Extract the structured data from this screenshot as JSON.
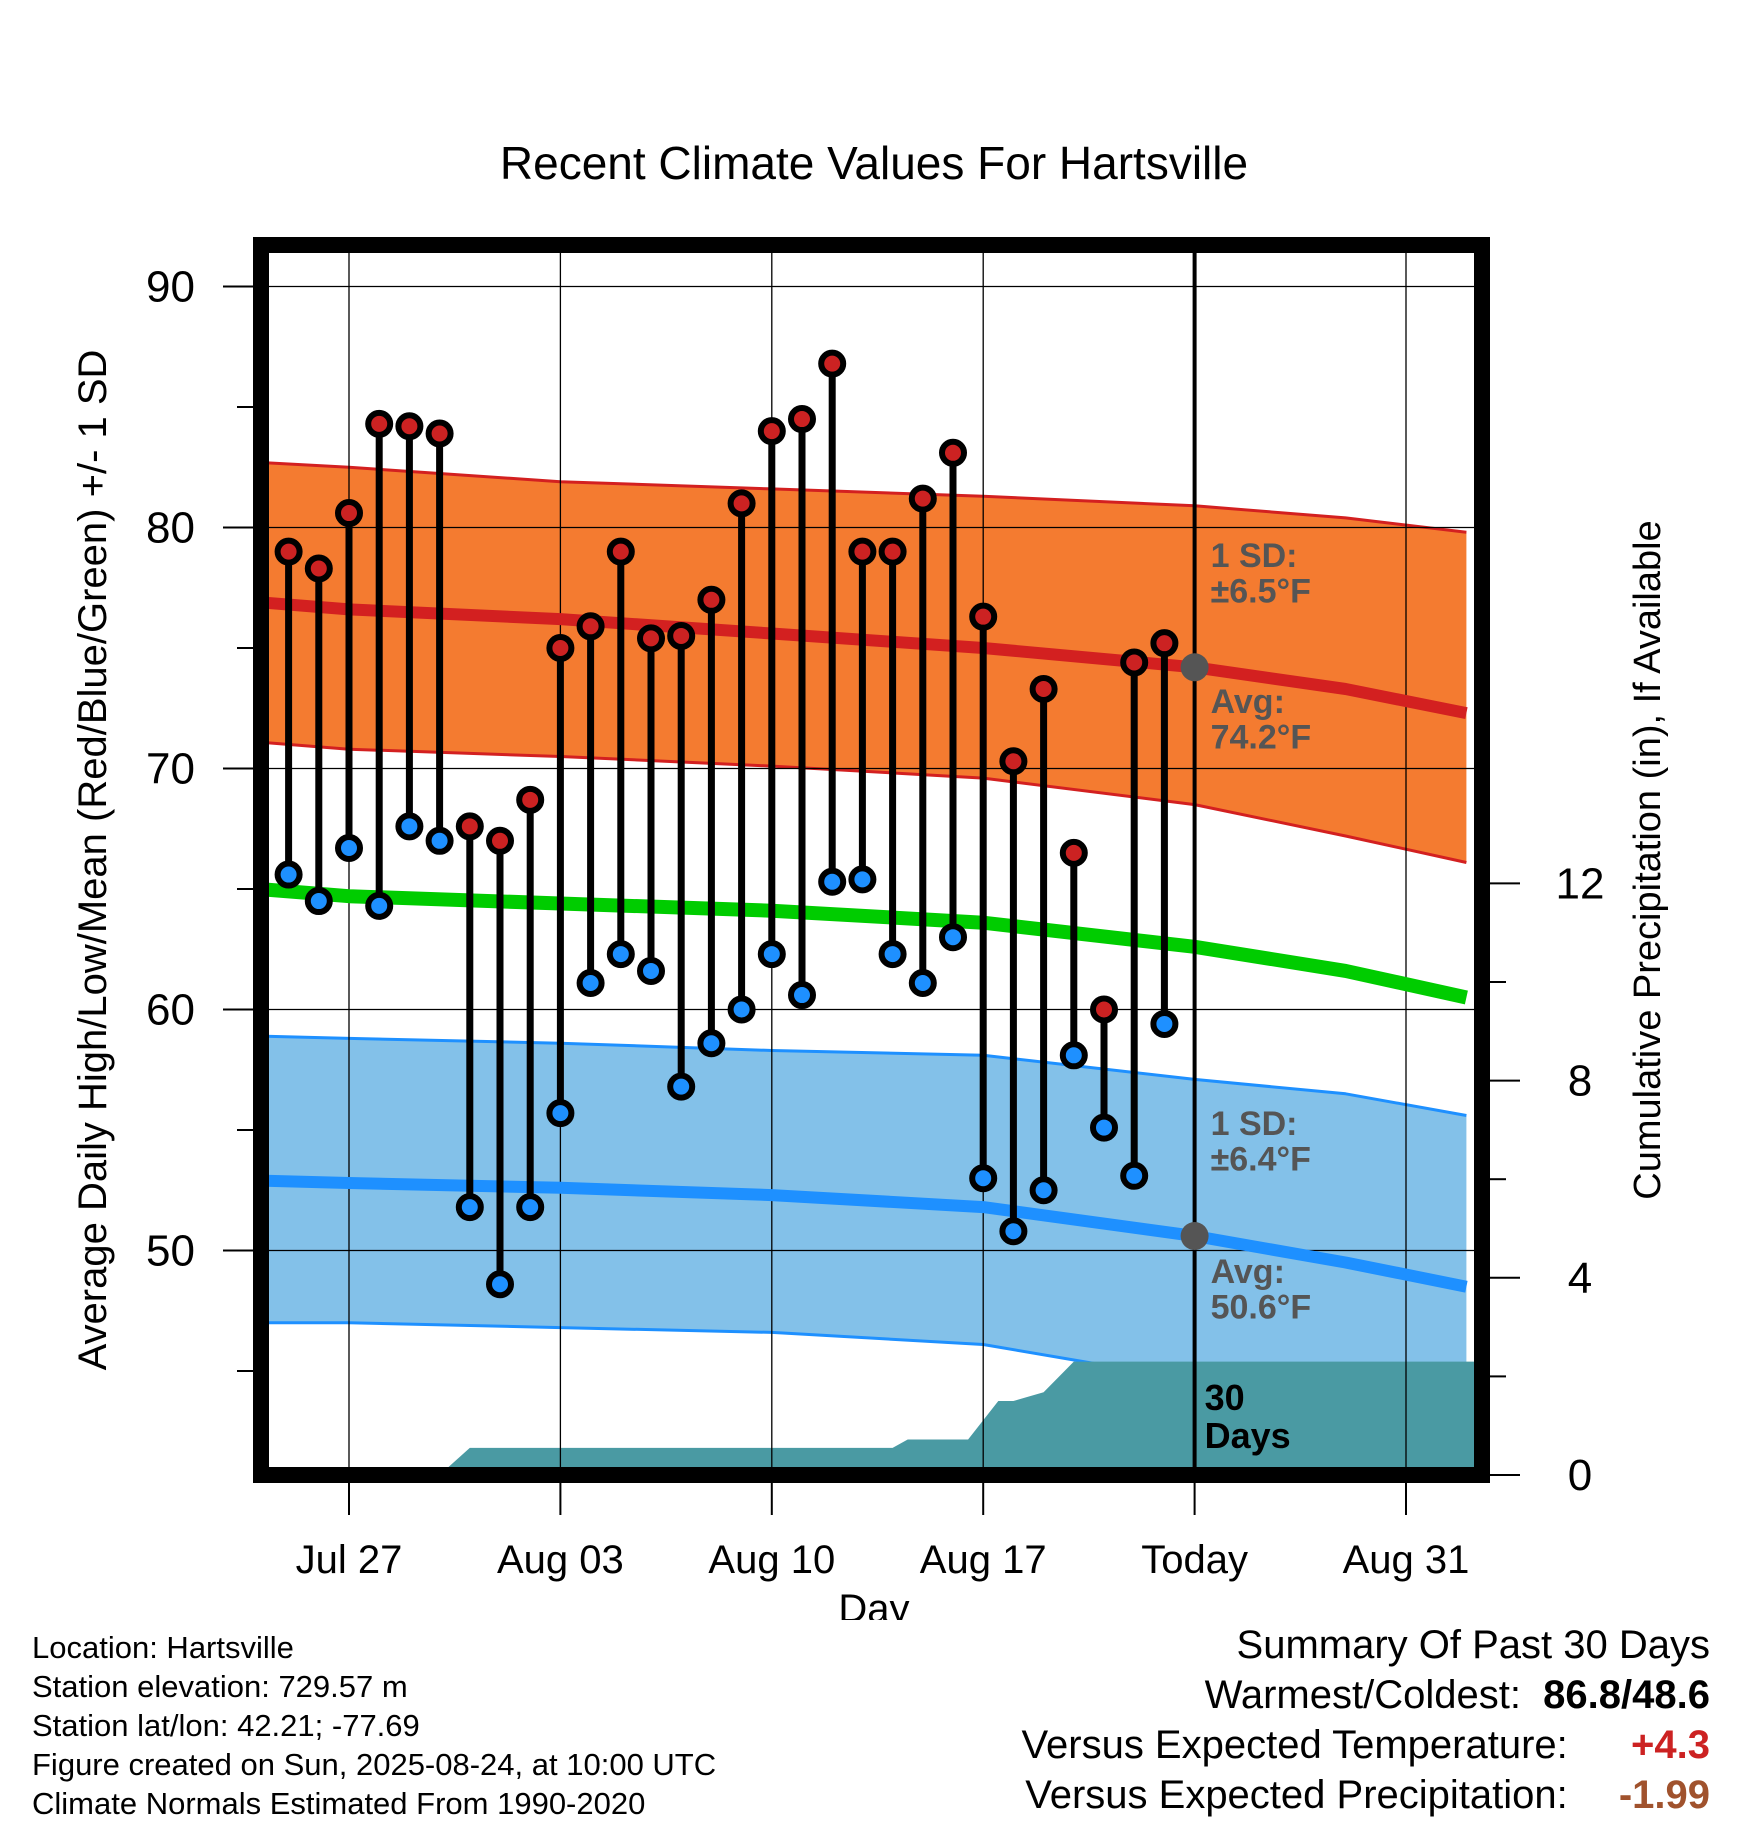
{
  "chart_data": {
    "type": "line",
    "title": "Recent Climate Values For Hartsville",
    "xlabel": "Day",
    "ylabel": "Average Daily High/Low/Mean (Red/Blue/Green) +/- 1 SD",
    "y2label": "Cumulative Precipitation (in), If Available",
    "ylim": [
      40.5,
      92
    ],
    "y2lim": [
      0,
      16
    ],
    "xlim": [
      -3.5,
      37.4
    ],
    "x_tick_labels": [
      {
        "day": 0,
        "label": "Jul 27"
      },
      {
        "day": 7,
        "label": "Aug 03"
      },
      {
        "day": 14,
        "label": "Aug 10"
      },
      {
        "day": 21,
        "label": "Aug 17"
      },
      {
        "day": 28,
        "label": "Today"
      },
      {
        "day": 35,
        "label": "Aug 31"
      }
    ],
    "y_ticks": [
      50,
      60,
      70,
      80,
      90
    ],
    "y2_ticks": [
      0,
      4,
      8,
      12
    ],
    "grid": true,
    "today_day": 28,
    "normals": {
      "day": [
        -3,
        0,
        7,
        14,
        21,
        28,
        33,
        37
      ],
      "high": [
        76.9,
        76.6,
        76.2,
        75.6,
        75,
        74.2,
        73.3,
        72.3
      ],
      "high_sd_upper": [
        82.7,
        82.5,
        81.9,
        81.6,
        81.3,
        80.9,
        80.4,
        79.8
      ],
      "high_sd_lower": [
        71.1,
        70.8,
        70.5,
        70.1,
        69.6,
        68.5,
        67.2,
        66.1
      ],
      "mean": [
        65,
        64.7,
        64.4,
        64.1,
        63.6,
        62.6,
        61.6,
        60.5
      ],
      "low": [
        52.9,
        52.8,
        52.6,
        52.3,
        51.8,
        50.6,
        49.5,
        48.5
      ],
      "low_sd_upper": [
        58.9,
        58.8,
        58.6,
        58.3,
        58.1,
        57.1,
        56.5,
        55.6
      ],
      "low_sd_lower": [
        47,
        47,
        46.8,
        46.6,
        46.1,
        44.6,
        44.5,
        44.4
      ]
    },
    "series": [
      {
        "name": "Daily High",
        "color": "#cc2222",
        "values": [
          79,
          78.3,
          80.6,
          84.3,
          84.2,
          83.9,
          67.6,
          67,
          68.7,
          75,
          75.9,
          79,
          75.4,
          75.5,
          77,
          81,
          84,
          84.5,
          86.8,
          79,
          79,
          81.2,
          83.1,
          76.3,
          70.3,
          73.3,
          66.5,
          60,
          74.4,
          75.2
        ]
      },
      {
        "name": "Daily Low",
        "color": "#1e90ff",
        "values": [
          65.6,
          64.5,
          66.7,
          64.3,
          67.6,
          67,
          51.8,
          48.6,
          51.8,
          55.7,
          61.1,
          62.3,
          61.6,
          56.8,
          58.6,
          60,
          62.3,
          60.6,
          65.3,
          65.4,
          62.3,
          61.1,
          63,
          53,
          50.8,
          52.5,
          58.1,
          55.1,
          53.1,
          59.4
        ]
      }
    ],
    "observed_days": [
      -2,
      -1,
      0,
      1,
      2,
      3,
      4,
      5,
      6,
      7,
      8,
      9,
      10,
      11,
      12,
      13,
      14,
      15,
      16,
      17,
      18,
      19,
      20,
      21,
      22,
      23,
      24,
      25,
      26,
      27
    ],
    "precipitation": {
      "day": [
        -3.5,
        3,
        4,
        13.5,
        18,
        18.5,
        20.5,
        21.5,
        22,
        23,
        24,
        37.4
      ],
      "value": [
        0,
        0,
        0.55,
        0.55,
        0.55,
        0.72,
        0.72,
        1.5,
        1.5,
        1.68,
        2.3,
        2.3
      ]
    },
    "annotations": {
      "high_sd": [
        "1 SD:",
        "±6.5°F"
      ],
      "high_avg": [
        "Avg:",
        "74.2°F"
      ],
      "low_sd": [
        "1 SD:",
        "±6.4°F"
      ],
      "low_avg": [
        "Avg:",
        "50.6°F"
      ],
      "precip_days": [
        "30",
        "Days"
      ]
    },
    "colors": {
      "high_band": "#f47b30",
      "high_line": "#d32020",
      "low_band": "#83c1e9",
      "low_line": "#1e90ff",
      "mean_line": "#00cc00",
      "precip_fill": "#4a9aa3",
      "avg_marker": "#555555",
      "annotation_text": "#555555"
    }
  },
  "info": {
    "location": "Location: Hartsville",
    "elevation": "Station elevation: 729.57 m",
    "latlon": "Station lat/lon: 42.21; -77.69",
    "created": "Figure created on Sun, 2025-08-24, at 10:00 UTC",
    "normals": "Climate Normals Estimated From 1990-2020"
  },
  "summary": {
    "title": "Summary Of Past 30 Days",
    "warmest_label": "Warmest/Coldest:",
    "warmest_value": "86.8/48.6",
    "temp_label": "Versus Expected Temperature:",
    "temp_value": "+4.3",
    "temp_color": "#cc2222",
    "precip_label": "Versus Expected Precipitation:",
    "precip_value": "-1.99",
    "precip_color": "#a0522d"
  }
}
